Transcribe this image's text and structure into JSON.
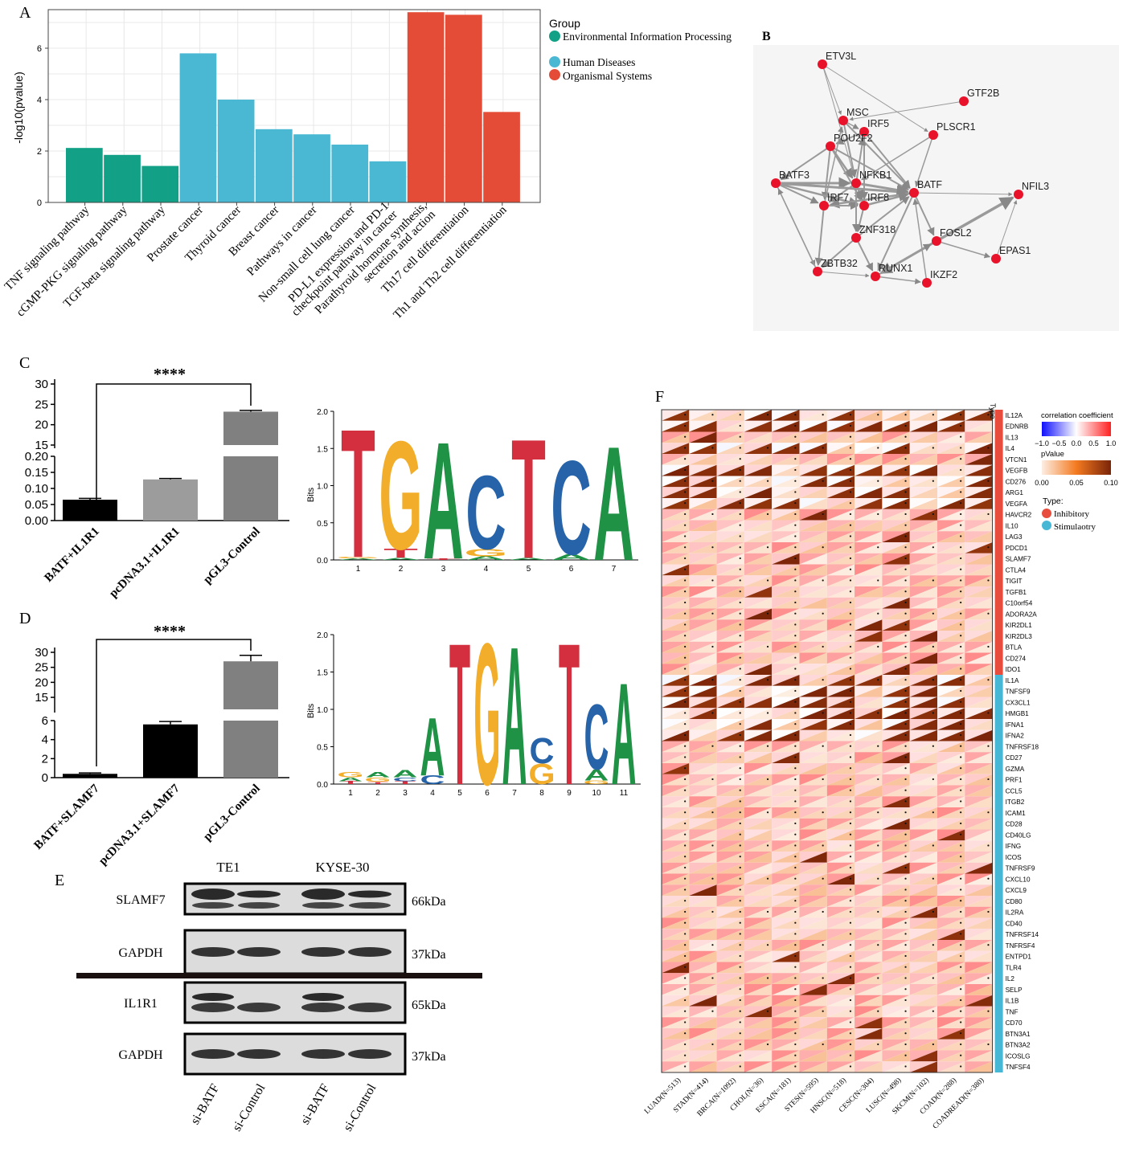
{
  "colors": {
    "env": "#12a187",
    "human": "#4bb8d3",
    "organ": "#e44c37",
    "logo_T": "#d42f3f",
    "logo_G": "#f2ae2a",
    "logo_A": "#1f9246",
    "logo_C": "#2663a9",
    "node": "#e8132b",
    "inhibitory": "#e74c3c",
    "stimulatory": "#46b7d5"
  },
  "panel_labels": {
    "a": "A",
    "b": "B",
    "c": "C",
    "d": "D",
    "e": "E",
    "f": "F"
  },
  "panelA": {
    "ylabel": "-log10(pvalue)",
    "legend_title": "Group",
    "legend": [
      "Environmental Information Processing",
      "Human Diseases",
      "Organismal Systems"
    ]
  },
  "panelB": {
    "nodes": [
      "ETV3L",
      "GTF2B",
      "MSC",
      "IRF5",
      "PLSCR1",
      "POU2F2",
      "BATF3",
      "NFKB1",
      "BATF",
      "NFIL3",
      "IRF7",
      "IRF8",
      "ZNF318",
      "FOSL2",
      "EPAS1",
      "ZBTB32",
      "RUNX1",
      "IKZF2"
    ]
  },
  "panelC": {
    "significance": "****",
    "categories": [
      "BATF+IL1R1",
      "pcDNA3.1+IL1R1",
      "pGL3-Control"
    ],
    "logo_ylabel": "Bits",
    "logo_positions": [
      "1",
      "2",
      "3",
      "4",
      "5",
      "6",
      "7"
    ]
  },
  "panelD": {
    "significance": "****",
    "categories": [
      "BATF+SLAMF7",
      "pcDNA3.1+SLAMF7",
      "pGL3-Control"
    ],
    "logo_ylabel": "Bits",
    "logo_positions": [
      "1",
      "2",
      "3",
      "4",
      "5",
      "6",
      "7",
      "8",
      "9",
      "10",
      "11"
    ]
  },
  "panelE": {
    "cell_lines": [
      "TE1",
      "KYSE-30"
    ],
    "rows": [
      {
        "label": "SLAMF7",
        "size": "66kDa"
      },
      {
        "label": "GAPDH",
        "size": "37kDa"
      },
      {
        "label": "IL1R1",
        "size": "65kDa"
      },
      {
        "label": "GAPDH",
        "size": "37kDa"
      }
    ],
    "lanes": [
      "si-BATF",
      "si-Control",
      "si-BATF",
      "si-Control"
    ]
  },
  "panelF": {
    "type_header": "Type",
    "genes": [
      "IL12A",
      "EDNRB",
      "IL13",
      "IL4",
      "VTCN1",
      "VEGFB",
      "CD276",
      "ARG1",
      "VEGFA",
      "HAVCR2",
      "IL10",
      "LAG3",
      "PDCD1",
      "SLAMF7",
      "CTLA4",
      "TIGIT",
      "TGFB1",
      "C10orf54",
      "ADORA2A",
      "KIR2DL1",
      "KIR2DL3",
      "BTLA",
      "CD274",
      "IDO1",
      "IL1A",
      "TNFSF9",
      "CX3CL1",
      "HMGB1",
      "IFNA1",
      "IFNA2",
      "TNFRSF18",
      "CD27",
      "GZMA",
      "PRF1",
      "CCL5",
      "ITGB2",
      "ICAM1",
      "CD28",
      "CD40LG",
      "IFNG",
      "ICOS",
      "TNFRSF9",
      "CXCL10",
      "CXCL9",
      "CD80",
      "IL2RA",
      "CD40",
      "TNFRSF14",
      "TNFRSF4",
      "ENTPD1",
      "TLR4",
      "IL2",
      "SELP",
      "IL1B",
      "TNF",
      "CD70",
      "BTN3A1",
      "BTN3A2",
      "ICOSLG",
      "TNFSF4"
    ],
    "cancers": [
      "LUAD(N=513)",
      "STAD(N=414)",
      "BRCA(N=1092)",
      "CHOL(N=36)",
      "ESCA(N=181)",
      "STES(N=595)",
      "HNSC(N=518)",
      "CESC(N=304)",
      "LUSC(N=498)",
      "SKCM(N=102)",
      "COAD(N=288)",
      "COADREAD(N=380)"
    ],
    "legend": {
      "corr_title": "correlation coefficient",
      "corr_ticks": [
        "−1.0",
        "−0.5",
        "0.0",
        "0.5",
        "1.0"
      ],
      "p_title": "pValue",
      "p_ticks": [
        "0.00",
        "0.05",
        "0.10"
      ],
      "type_title": "Type:",
      "types": [
        "Inhibitory",
        "Stimulaotry"
      ]
    }
  },
  "chart_data": [
    {
      "type": "bar",
      "title": "",
      "xlabel": "",
      "ylabel": "-log10(pvalue)",
      "ylim": [
        0,
        7.5
      ],
      "categories": [
        "TNF signaling pathway",
        "cGMP-PKG signaling pathway",
        "TGF-beta signaling pathway",
        "Prostate cancer",
        "Thyroid cancer",
        "Breast cancer",
        "Pathways in cancer",
        "Non-small cell lung cancer",
        "PD-L1 expression and PD-1 checkpoint pathway in cancer",
        "Parathyroid hormone synthesis, secretion and action",
        "Th17 cell differentiation",
        "Th1 and Th2 cell differentiation"
      ],
      "values": [
        2.12,
        1.85,
        1.42,
        5.8,
        4.0,
        2.85,
        2.65,
        2.25,
        1.6,
        7.4,
        7.3,
        3.52
      ],
      "groups": [
        "Environmental Information Processing",
        "Environmental Information Processing",
        "Environmental Information Processing",
        "Human Diseases",
        "Human Diseases",
        "Human Diseases",
        "Human Diseases",
        "Human Diseases",
        "Human Diseases",
        "Organismal Systems",
        "Organismal Systems",
        "Organismal Systems"
      ],
      "yticks": [
        "0",
        "2",
        "4",
        "6"
      ],
      "legend_position": "right"
    },
    {
      "type": "bar",
      "title": "",
      "categories": [
        "BATF+IL1R1",
        "pcDNA3.1+IL1R1",
        "pGL3-Control"
      ],
      "values": [
        0.065,
        0.128,
        23.2
      ],
      "error": [
        0.004,
        0.003,
        0.3
      ],
      "broken_axis": {
        "lower": [
          0,
          0.2
        ],
        "upper": [
          15,
          30
        ]
      },
      "yticks_lower": [
        "0.00",
        "0.05",
        "0.10",
        "0.15",
        "0.20"
      ],
      "yticks_upper": [
        "15",
        "20",
        "25",
        "30"
      ]
    },
    {
      "type": "bar",
      "title": "",
      "categories": [
        "BATF+SLAMF7",
        "pcDNA3.1+SLAMF7",
        "pGL3-Control"
      ],
      "values": [
        0.4,
        5.6,
        27.0
      ],
      "error": [
        0.1,
        0.3,
        2.0
      ],
      "broken_axis": {
        "lower": [
          0,
          6
        ],
        "upper": [
          11,
          30
        ]
      },
      "yticks_lower": [
        "0",
        "2",
        "4",
        "6"
      ],
      "yticks_upper": [
        "15",
        "20",
        "25",
        "30"
      ]
    }
  ]
}
